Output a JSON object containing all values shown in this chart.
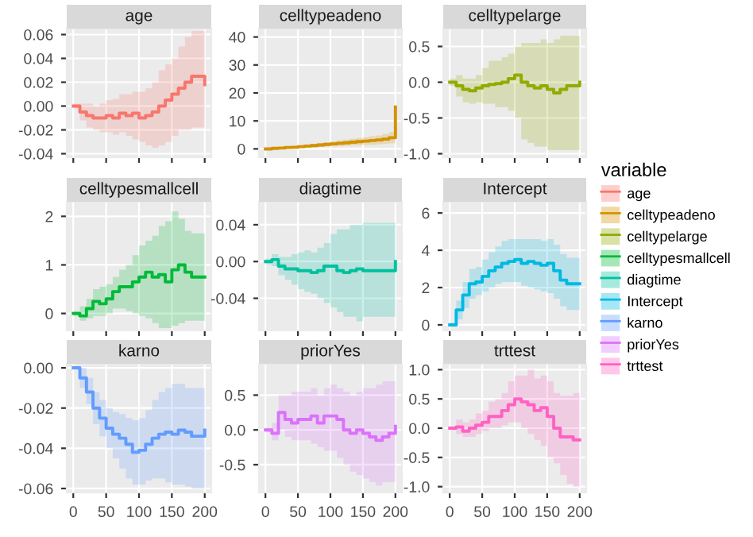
{
  "chart_data": [
    {
      "type": "step",
      "title": "age",
      "xlim": [
        -10,
        210
      ],
      "xticks": [
        0,
        50,
        100,
        150,
        200
      ],
      "ylim": [
        -0.043,
        0.065
      ],
      "yticks": [
        -0.04,
        -0.02,
        {
          "value": 0,
          "label": "0.00"
        },
        0.02,
        0.04,
        0.06
      ],
      "tick_labels": "y",
      "grid": true,
      "legend": "right",
      "legend_title": "variable",
      "series": [
        {
          "name": "age",
          "color": "#f8766d",
          "x": [
            0,
            10,
            20,
            30,
            40,
            50,
            60,
            70,
            80,
            90,
            100,
            110,
            120,
            130,
            140,
            150,
            160,
            170,
            180,
            190,
            200
          ],
          "values": [
            0.0,
            -0.005,
            -0.008,
            -0.01,
            -0.01,
            -0.008,
            -0.01,
            -0.006,
            -0.008,
            -0.006,
            -0.01,
            -0.008,
            -0.005,
            0.0,
            0.005,
            0.01,
            0.015,
            0.02,
            0.025,
            0.025,
            0.018
          ],
          "lower": [
            -0.002,
            -0.012,
            -0.018,
            -0.02,
            -0.022,
            -0.022,
            -0.024,
            -0.022,
            -0.025,
            -0.028,
            -0.03,
            -0.033,
            -0.035,
            -0.033,
            -0.03,
            -0.025,
            -0.02,
            -0.02,
            -0.018,
            -0.018,
            -0.02
          ],
          "upper": [
            0.002,
            0.002,
            0.002,
            0.0,
            0.002,
            0.005,
            0.006,
            0.01,
            0.01,
            0.012,
            0.012,
            0.015,
            0.02,
            0.03,
            0.035,
            0.04,
            0.05,
            0.058,
            0.063,
            0.063,
            0.06
          ]
        }
      ]
    },
    {
      "type": "step",
      "title": "celltypeadeno",
      "xlim": [
        -10,
        210
      ],
      "xticks": [
        0,
        50,
        100,
        150,
        200
      ],
      "ylim": [
        -3,
        43
      ],
      "yticks": [
        0,
        10,
        20,
        30,
        40
      ],
      "tick_labels": "y",
      "grid": true,
      "legend": "right",
      "series": [
        {
          "name": "celltypeadeno",
          "color": "#d39200",
          "x": [
            0,
            10,
            20,
            30,
            40,
            50,
            60,
            70,
            80,
            90,
            100,
            110,
            120,
            130,
            140,
            150,
            160,
            170,
            180,
            190,
            200
          ],
          "values": [
            0,
            0.2,
            0.3,
            0.5,
            0.6,
            0.8,
            1,
            1.2,
            1.4,
            1.6,
            1.8,
            2,
            2.2,
            2.4,
            2.6,
            2.8,
            3,
            3.2,
            3.5,
            4,
            15
          ],
          "lower": [
            0,
            0.1,
            0.1,
            0.2,
            0.3,
            0.4,
            0.5,
            0.6,
            0.7,
            0.8,
            0.9,
            1,
            1.1,
            1.2,
            1.3,
            1.4,
            1.5,
            1.6,
            1.8,
            2,
            14
          ],
          "upper": [
            0,
            0.3,
            0.5,
            0.8,
            0.9,
            1.2,
            1.5,
            1.8,
            2.1,
            2.4,
            2.7,
            3,
            3.3,
            3.6,
            3.9,
            4.2,
            4.5,
            4.8,
            5.3,
            6,
            16
          ]
        }
      ]
    },
    {
      "type": "step",
      "title": "celltypelarge",
      "xlim": [
        -10,
        210
      ],
      "xticks": [
        0,
        50,
        100,
        150,
        200
      ],
      "ylim": [
        -1.05,
        0.75
      ],
      "yticks": [
        {
          "value": -1,
          "label": "-1.0"
        },
        -0.5,
        {
          "value": 0,
          "label": "0.0"
        },
        0.5
      ],
      "tick_labels": "y",
      "grid": true,
      "legend": "right",
      "series": [
        {
          "name": "celltypelarge",
          "color": "#93aa00",
          "x": [
            0,
            10,
            20,
            30,
            40,
            50,
            60,
            70,
            80,
            90,
            100,
            110,
            120,
            130,
            140,
            150,
            160,
            170,
            180,
            190,
            200
          ],
          "values": [
            0,
            -0.05,
            -0.1,
            -0.12,
            -0.08,
            -0.05,
            -0.03,
            -0.02,
            0.0,
            0.05,
            0.1,
            0.0,
            -0.05,
            -0.08,
            -0.05,
            -0.1,
            -0.15,
            -0.1,
            -0.05,
            -0.05,
            0.0
          ],
          "lower": [
            -0.05,
            -0.2,
            -0.28,
            -0.3,
            -0.28,
            -0.3,
            -0.3,
            -0.35,
            -0.35,
            -0.4,
            -0.5,
            -0.8,
            -0.85,
            -0.9,
            -0.9,
            -0.95,
            -0.95,
            -0.95,
            -0.95,
            -0.95,
            -0.95
          ],
          "upper": [
            0.05,
            0.1,
            0.05,
            0.05,
            0.1,
            0.2,
            0.3,
            0.3,
            0.35,
            0.4,
            0.5,
            0.55,
            0.55,
            0.55,
            0.6,
            0.55,
            0.6,
            0.65,
            0.65,
            0.65,
            0.65
          ]
        }
      ]
    },
    {
      "type": "step",
      "title": "celltypesmallcell",
      "xlim": [
        -10,
        210
      ],
      "xticks": [
        0,
        50,
        100,
        150,
        200
      ],
      "ylim": [
        -0.35,
        2.3
      ],
      "yticks": [
        0,
        1,
        2
      ],
      "tick_labels": "y",
      "grid": true,
      "legend": "right",
      "series": [
        {
          "name": "celltypesmallcell",
          "color": "#00ba38",
          "x": [
            0,
            10,
            20,
            30,
            40,
            50,
            60,
            70,
            80,
            90,
            100,
            110,
            120,
            130,
            140,
            150,
            160,
            170,
            180,
            190,
            200
          ],
          "values": [
            0,
            -0.05,
            0.1,
            0.25,
            0.2,
            0.3,
            0.45,
            0.55,
            0.55,
            0.65,
            0.75,
            0.85,
            0.75,
            0.8,
            0.65,
            0.9,
            1.0,
            0.85,
            0.75,
            0.75,
            0.75
          ],
          "lower": [
            -0.05,
            -0.15,
            -0.1,
            -0.05,
            -0.05,
            0.0,
            0.1,
            0.1,
            0.05,
            0.0,
            -0.05,
            -0.1,
            -0.2,
            -0.3,
            -0.3,
            -0.25,
            -0.2,
            -0.15,
            -0.15,
            -0.15,
            -0.15
          ],
          "upper": [
            0.05,
            0.15,
            0.3,
            0.5,
            0.55,
            0.6,
            0.75,
            0.9,
            1.0,
            1.2,
            1.4,
            1.5,
            1.6,
            1.8,
            1.9,
            2.1,
            1.95,
            1.7,
            1.65,
            1.65,
            1.65
          ]
        }
      ]
    },
    {
      "type": "step",
      "title": "diagtime",
      "xlim": [
        -10,
        210
      ],
      "xticks": [
        0,
        50,
        100,
        150,
        200
      ],
      "ylim": [
        -0.075,
        0.065
      ],
      "yticks": [
        -0.04,
        {
          "value": 0,
          "label": "0.00"
        },
        0.04
      ],
      "tick_labels": "y",
      "grid": true,
      "legend": "right",
      "series": [
        {
          "name": "diagtime",
          "color": "#00c19f",
          "x": [
            0,
            10,
            20,
            30,
            40,
            50,
            60,
            70,
            80,
            90,
            100,
            110,
            120,
            130,
            140,
            150,
            160,
            170,
            180,
            190,
            200
          ],
          "values": [
            0,
            0.002,
            -0.005,
            -0.008,
            -0.008,
            -0.01,
            -0.01,
            -0.012,
            -0.01,
            -0.005,
            -0.005,
            -0.01,
            -0.012,
            -0.01,
            -0.008,
            -0.01,
            -0.01,
            -0.01,
            -0.01,
            -0.01,
            0.0
          ],
          "lower": [
            -0.003,
            -0.005,
            -0.015,
            -0.02,
            -0.025,
            -0.03,
            -0.033,
            -0.035,
            -0.04,
            -0.045,
            -0.05,
            -0.055,
            -0.06,
            -0.06,
            -0.065,
            -0.06,
            -0.06,
            -0.06,
            -0.06,
            -0.06,
            -0.06
          ],
          "upper": [
            0.003,
            0.008,
            0.005,
            0.005,
            0.008,
            0.01,
            0.012,
            0.01,
            0.015,
            0.02,
            0.03,
            0.035,
            0.035,
            0.04,
            0.04,
            0.042,
            0.042,
            0.042,
            0.042,
            0.042,
            0.042
          ]
        }
      ]
    },
    {
      "type": "step",
      "title": "Intercept",
      "xlim": [
        -10,
        210
      ],
      "xticks": [
        0,
        50,
        100,
        150,
        200
      ],
      "ylim": [
        -0.3,
        6.6
      ],
      "yticks": [
        0,
        2,
        4,
        6
      ],
      "tick_labels": "y",
      "grid": true,
      "legend": "right",
      "series": [
        {
          "name": "Intercept",
          "color": "#00b9e3",
          "x": [
            0,
            10,
            20,
            30,
            40,
            50,
            60,
            70,
            80,
            90,
            100,
            110,
            120,
            130,
            140,
            150,
            160,
            170,
            180,
            190,
            200
          ],
          "values": [
            0,
            0.8,
            1.6,
            2.2,
            2.3,
            2.6,
            2.9,
            3.1,
            3.3,
            3.4,
            3.5,
            3.3,
            3.4,
            3.3,
            3.2,
            3.3,
            2.9,
            2.4,
            2.2,
            2.2,
            2.2
          ],
          "lower": [
            -0.1,
            0.3,
            0.9,
            1.4,
            1.6,
            1.8,
            2.0,
            2.2,
            2.3,
            2.3,
            2.3,
            2.1,
            2.0,
            1.9,
            1.8,
            1.7,
            1.4,
            1.0,
            0.8,
            0.8,
            0.8
          ],
          "upper": [
            0.1,
            1.3,
            2.3,
            3.0,
            3.1,
            3.5,
            3.9,
            4.2,
            4.5,
            4.6,
            4.6,
            4.6,
            4.6,
            4.6,
            4.5,
            4.6,
            4.3,
            3.8,
            3.6,
            3.6,
            3.6
          ]
        }
      ]
    },
    {
      "type": "step",
      "title": "karno",
      "xlim": [
        -10,
        210
      ],
      "xticks": [
        0,
        50,
        100,
        150,
        200
      ],
      "ylim": [
        -0.062,
        0.002
      ],
      "yticks": [
        -0.06,
        -0.04,
        -0.02,
        {
          "value": 0,
          "label": "0.00"
        }
      ],
      "grid": true,
      "legend": "right",
      "series": [
        {
          "name": "karno",
          "color": "#619cff",
          "x": [
            0,
            10,
            20,
            30,
            40,
            50,
            60,
            70,
            80,
            90,
            100,
            110,
            120,
            130,
            140,
            150,
            160,
            170,
            180,
            190,
            200
          ],
          "values": [
            0,
            -0.005,
            -0.012,
            -0.02,
            -0.025,
            -0.03,
            -0.033,
            -0.035,
            -0.038,
            -0.042,
            -0.041,
            -0.038,
            -0.035,
            -0.033,
            -0.032,
            -0.033,
            -0.031,
            -0.032,
            -0.034,
            -0.034,
            -0.031
          ],
          "lower": [
            0,
            -0.01,
            -0.018,
            -0.028,
            -0.034,
            -0.04,
            -0.045,
            -0.05,
            -0.055,
            -0.058,
            -0.058,
            -0.056,
            -0.055,
            -0.055,
            -0.057,
            -0.058,
            -0.058,
            -0.059,
            -0.06,
            -0.06,
            -0.06
          ],
          "upper": [
            0,
            0.0,
            -0.005,
            -0.012,
            -0.016,
            -0.02,
            -0.022,
            -0.023,
            -0.025,
            -0.026,
            -0.025,
            -0.021,
            -0.016,
            -0.012,
            -0.01,
            -0.008,
            -0.008,
            -0.01,
            -0.01,
            -0.01,
            -0.01
          ]
        }
      ]
    },
    {
      "type": "step",
      "title": "priorYes",
      "xlim": [
        -10,
        210
      ],
      "xticks": [
        0,
        50,
        100,
        150,
        200
      ],
      "ylim": [
        -0.9,
        0.95
      ],
      "yticks": [
        -0.5,
        {
          "value": 0,
          "label": "0.0"
        },
        0.5
      ],
      "grid": true,
      "legend": "right",
      "series": [
        {
          "name": "priorYes",
          "color": "#db72fb",
          "x": [
            0,
            10,
            20,
            30,
            40,
            50,
            60,
            70,
            80,
            90,
            100,
            110,
            120,
            130,
            140,
            150,
            160,
            170,
            180,
            190,
            200
          ],
          "values": [
            0,
            -0.05,
            0.25,
            0.15,
            0.1,
            0.15,
            0.15,
            0.2,
            0.1,
            0.2,
            0.2,
            0.15,
            0.0,
            -0.05,
            0.0,
            -0.05,
            -0.1,
            -0.15,
            -0.1,
            -0.05,
            0.05
          ],
          "lower": [
            -0.03,
            -0.15,
            0.0,
            -0.1,
            -0.15,
            -0.15,
            -0.15,
            -0.2,
            -0.25,
            -0.3,
            -0.3,
            -0.4,
            -0.5,
            -0.6,
            -0.65,
            -0.7,
            -0.75,
            -0.8,
            -0.75,
            -0.75,
            -0.75
          ],
          "upper": [
            0.03,
            0.1,
            0.5,
            0.5,
            0.55,
            0.55,
            0.55,
            0.6,
            0.5,
            0.6,
            0.65,
            0.6,
            0.55,
            0.5,
            0.55,
            0.6,
            0.6,
            0.65,
            0.7,
            0.7,
            0.7
          ]
        }
      ]
    },
    {
      "type": "step",
      "title": "trttest",
      "xlim": [
        -10,
        210
      ],
      "xticks": [
        0,
        50,
        100,
        150,
        200
      ],
      "ylim": [
        -1.1,
        1.1
      ],
      "yticks": [
        {
          "value": -1,
          "label": "-1.0"
        },
        -0.5,
        {
          "value": 0,
          "label": "0.0"
        },
        0.5,
        {
          "value": 1,
          "label": "1.0"
        }
      ],
      "grid": true,
      "legend": "right",
      "series": [
        {
          "name": "trttest",
          "color": "#ff61c3",
          "x": [
            0,
            10,
            20,
            30,
            40,
            50,
            60,
            70,
            80,
            90,
            100,
            110,
            120,
            130,
            140,
            150,
            160,
            170,
            180,
            190,
            200
          ],
          "values": [
            0,
            0.02,
            -0.05,
            0.0,
            0.05,
            0.1,
            0.2,
            0.2,
            0.3,
            0.4,
            0.5,
            0.45,
            0.4,
            0.3,
            0.35,
            0.2,
            0.0,
            -0.15,
            -0.15,
            -0.2,
            -0.2
          ],
          "lower": [
            -0.03,
            -0.1,
            -0.15,
            -0.15,
            -0.1,
            -0.05,
            0.0,
            0.0,
            0.05,
            0.1,
            0.1,
            0.0,
            -0.1,
            -0.2,
            -0.3,
            -0.5,
            -0.6,
            -0.8,
            -0.95,
            -1.0,
            -1.0
          ],
          "upper": [
            0.03,
            0.15,
            0.1,
            0.15,
            0.25,
            0.3,
            0.45,
            0.5,
            0.6,
            0.8,
            0.9,
            0.9,
            1.0,
            0.85,
            0.9,
            0.8,
            0.6,
            0.55,
            0.55,
            0.6,
            0.6
          ]
        }
      ]
    }
  ]
}
